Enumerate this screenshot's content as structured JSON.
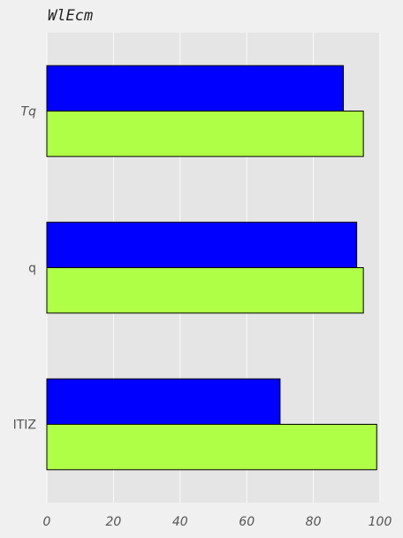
{
  "chart_data": {
    "type": "bar",
    "orientation": "horizontal",
    "title": "WlEcm",
    "categories": [
      "Tq",
      "q",
      "ITIZ"
    ],
    "series": [
      {
        "color": "#0000ff",
        "values": [
          89,
          93,
          70
        ]
      },
      {
        "color": "#b0ff47",
        "values": [
          95,
          95,
          99
        ]
      }
    ],
    "xticks": [
      "0",
      "20",
      "40",
      "60",
      "80",
      "100"
    ],
    "xlim": [
      0,
      100
    ],
    "grid": true,
    "legend": "none",
    "plot_background": "#e5e5e5",
    "page_background": "#f0f0f0"
  }
}
